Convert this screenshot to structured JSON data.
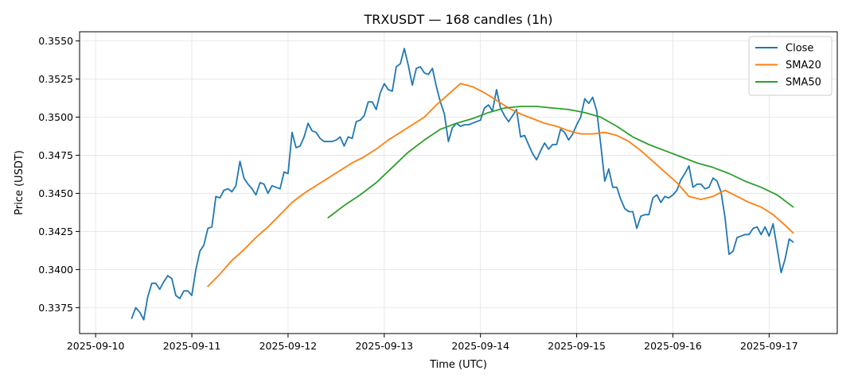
{
  "chart_data": {
    "type": "line",
    "title": "TRXUSDT — 168 candles (1h)",
    "xlabel": "Time (UTC)",
    "ylabel": "Price (USDT)",
    "x_ticks": [
      "2025-09-10",
      "2025-09-11",
      "2025-09-12",
      "2025-09-13",
      "2025-09-14",
      "2025-09-15",
      "2025-09-16",
      "2025-09-17"
    ],
    "y_ticks": [
      "0.3375",
      "0.3400",
      "0.3425",
      "0.3450",
      "0.3475",
      "0.3500",
      "0.3525",
      "0.3550"
    ],
    "xlim_days": [
      "2025-09-09 20:00",
      "2025-09-17 17:00"
    ],
    "ylim": [
      0.3358,
      0.3556
    ],
    "grid": true,
    "legend_position": "top-right",
    "series": [
      {
        "name": "Close",
        "color": "#1f77b4",
        "points": [
          [
            "2025-09-10 09:00",
            0.3368
          ],
          [
            "2025-09-10 10:00",
            0.3375
          ],
          [
            "2025-09-10 11:00",
            0.3372
          ],
          [
            "2025-09-10 12:00",
            0.3367
          ],
          [
            "2025-09-10 13:00",
            0.3382
          ],
          [
            "2025-09-10 14:00",
            0.3391
          ],
          [
            "2025-09-10 15:00",
            0.3391
          ],
          [
            "2025-09-10 16:00",
            0.3387
          ],
          [
            "2025-09-10 17:00",
            0.3392
          ],
          [
            "2025-09-10 18:00",
            0.3396
          ],
          [
            "2025-09-10 19:00",
            0.3394
          ],
          [
            "2025-09-10 20:00",
            0.3383
          ],
          [
            "2025-09-10 21:00",
            0.3381
          ],
          [
            "2025-09-10 22:00",
            0.3386
          ],
          [
            "2025-09-10 23:00",
            0.3386
          ],
          [
            "2025-09-11 00:00",
            0.3383
          ],
          [
            "2025-09-11 01:00",
            0.34
          ],
          [
            "2025-09-11 02:00",
            0.3412
          ],
          [
            "2025-09-11 03:00",
            0.3416
          ],
          [
            "2025-09-11 04:00",
            0.3427
          ],
          [
            "2025-09-11 05:00",
            0.3428
          ],
          [
            "2025-09-11 06:00",
            0.3448
          ],
          [
            "2025-09-11 07:00",
            0.3447
          ],
          [
            "2025-09-11 08:00",
            0.3452
          ],
          [
            "2025-09-11 09:00",
            0.3453
          ],
          [
            "2025-09-11 10:00",
            0.3451
          ],
          [
            "2025-09-11 11:00",
            0.3455
          ],
          [
            "2025-09-11 12:00",
            0.3471
          ],
          [
            "2025-09-11 13:00",
            0.346
          ],
          [
            "2025-09-11 14:00",
            0.3456
          ],
          [
            "2025-09-11 15:00",
            0.3453
          ],
          [
            "2025-09-11 16:00",
            0.3449
          ],
          [
            "2025-09-11 17:00",
            0.3457
          ],
          [
            "2025-09-11 18:00",
            0.3456
          ],
          [
            "2025-09-11 19:00",
            0.345
          ],
          [
            "2025-09-11 20:00",
            0.3455
          ],
          [
            "2025-09-11 21:00",
            0.3454
          ],
          [
            "2025-09-11 22:00",
            0.3453
          ],
          [
            "2025-09-11 23:00",
            0.3464
          ],
          [
            "2025-09-12 00:00",
            0.3463
          ],
          [
            "2025-09-12 01:00",
            0.349
          ],
          [
            "2025-09-12 02:00",
            0.348
          ],
          [
            "2025-09-12 03:00",
            0.3481
          ],
          [
            "2025-09-12 04:00",
            0.3487
          ],
          [
            "2025-09-12 05:00",
            0.3496
          ],
          [
            "2025-09-12 06:00",
            0.3491
          ],
          [
            "2025-09-12 07:00",
            0.349
          ],
          [
            "2025-09-12 08:00",
            0.3486
          ],
          [
            "2025-09-12 09:00",
            0.3484
          ],
          [
            "2025-09-12 10:00",
            0.3484
          ],
          [
            "2025-09-12 11:00",
            0.3484
          ],
          [
            "2025-09-12 12:00",
            0.3485
          ],
          [
            "2025-09-12 13:00",
            0.3487
          ],
          [
            "2025-09-12 14:00",
            0.3481
          ],
          [
            "2025-09-12 15:00",
            0.3487
          ],
          [
            "2025-09-12 16:00",
            0.3486
          ],
          [
            "2025-09-12 17:00",
            0.3497
          ],
          [
            "2025-09-12 18:00",
            0.3498
          ],
          [
            "2025-09-12 19:00",
            0.3501
          ],
          [
            "2025-09-12 20:00",
            0.351
          ],
          [
            "2025-09-12 21:00",
            0.351
          ],
          [
            "2025-09-12 22:00",
            0.3505
          ],
          [
            "2025-09-12 23:00",
            0.3516
          ],
          [
            "2025-09-13 00:00",
            0.3522
          ],
          [
            "2025-09-13 01:00",
            0.3518
          ],
          [
            "2025-09-13 02:00",
            0.3517
          ],
          [
            "2025-09-13 03:00",
            0.3533
          ],
          [
            "2025-09-13 04:00",
            0.3535
          ],
          [
            "2025-09-13 05:00",
            0.3545
          ],
          [
            "2025-09-13 06:00",
            0.3534
          ],
          [
            "2025-09-13 07:00",
            0.3521
          ],
          [
            "2025-09-13 08:00",
            0.3532
          ],
          [
            "2025-09-13 09:00",
            0.3533
          ],
          [
            "2025-09-13 10:00",
            0.3529
          ],
          [
            "2025-09-13 11:00",
            0.3528
          ],
          [
            "2025-09-13 12:00",
            0.3532
          ],
          [
            "2025-09-13 13:00",
            0.352
          ],
          [
            "2025-09-13 14:00",
            0.351
          ],
          [
            "2025-09-13 15:00",
            0.3502
          ],
          [
            "2025-09-13 16:00",
            0.3484
          ],
          [
            "2025-09-13 17:00",
            0.3493
          ],
          [
            "2025-09-13 18:00",
            0.3496
          ],
          [
            "2025-09-13 19:00",
            0.3494
          ],
          [
            "2025-09-13 20:00",
            0.3495
          ],
          [
            "2025-09-13 21:00",
            0.3495
          ],
          [
            "2025-09-13 22:00",
            0.3496
          ],
          [
            "2025-09-13 23:00",
            0.3497
          ],
          [
            "2025-09-14 00:00",
            0.3498
          ],
          [
            "2025-09-14 01:00",
            0.3506
          ],
          [
            "2025-09-14 02:00",
            0.3508
          ],
          [
            "2025-09-14 03:00",
            0.3504
          ],
          [
            "2025-09-14 04:00",
            0.3518
          ],
          [
            "2025-09-14 05:00",
            0.3506
          ],
          [
            "2025-09-14 06:00",
            0.3501
          ],
          [
            "2025-09-14 07:00",
            0.3497
          ],
          [
            "2025-09-14 08:00",
            0.3501
          ],
          [
            "2025-09-14 09:00",
            0.3505
          ],
          [
            "2025-09-14 10:00",
            0.3487
          ],
          [
            "2025-09-14 11:00",
            0.3488
          ],
          [
            "2025-09-14 12:00",
            0.3482
          ],
          [
            "2025-09-14 13:00",
            0.3476
          ],
          [
            "2025-09-14 14:00",
            0.3472
          ],
          [
            "2025-09-14 15:00",
            0.3478
          ],
          [
            "2025-09-14 16:00",
            0.3483
          ],
          [
            "2025-09-14 17:00",
            0.3479
          ],
          [
            "2025-09-14 18:00",
            0.3482
          ],
          [
            "2025-09-14 19:00",
            0.3482
          ],
          [
            "2025-09-14 20:00",
            0.3492
          ],
          [
            "2025-09-14 21:00",
            0.349
          ],
          [
            "2025-09-14 22:00",
            0.3485
          ],
          [
            "2025-09-14 23:00",
            0.3489
          ],
          [
            "2025-09-15 00:00",
            0.3495
          ],
          [
            "2025-09-15 01:00",
            0.35
          ],
          [
            "2025-09-15 02:00",
            0.3512
          ],
          [
            "2025-09-15 03:00",
            0.3509
          ],
          [
            "2025-09-15 04:00",
            0.3513
          ],
          [
            "2025-09-15 05:00",
            0.3504
          ],
          [
            "2025-09-15 06:00",
            0.3482
          ],
          [
            "2025-09-15 07:00",
            0.3458
          ],
          [
            "2025-09-15 08:00",
            0.3466
          ],
          [
            "2025-09-15 09:00",
            0.3454
          ],
          [
            "2025-09-15 10:00",
            0.3454
          ],
          [
            "2025-09-15 11:00",
            0.3446
          ],
          [
            "2025-09-15 12:00",
            0.344
          ],
          [
            "2025-09-15 13:00",
            0.3438
          ],
          [
            "2025-09-15 14:00",
            0.3438
          ],
          [
            "2025-09-15 15:00",
            0.3427
          ],
          [
            "2025-09-15 16:00",
            0.3435
          ],
          [
            "2025-09-15 17:00",
            0.3436
          ],
          [
            "2025-09-15 18:00",
            0.3436
          ],
          [
            "2025-09-15 19:00",
            0.3447
          ],
          [
            "2025-09-15 20:00",
            0.3449
          ],
          [
            "2025-09-15 21:00",
            0.3444
          ],
          [
            "2025-09-15 22:00",
            0.3448
          ],
          [
            "2025-09-15 23:00",
            0.3447
          ],
          [
            "2025-09-16 00:00",
            0.3449
          ],
          [
            "2025-09-16 01:00",
            0.3452
          ],
          [
            "2025-09-16 02:00",
            0.3459
          ],
          [
            "2025-09-16 03:00",
            0.3463
          ],
          [
            "2025-09-16 04:00",
            0.3468
          ],
          [
            "2025-09-16 05:00",
            0.3454
          ],
          [
            "2025-09-16 06:00",
            0.3456
          ],
          [
            "2025-09-16 07:00",
            0.3456
          ],
          [
            "2025-09-16 08:00",
            0.3453
          ],
          [
            "2025-09-16 09:00",
            0.3454
          ],
          [
            "2025-09-16 10:00",
            0.346
          ],
          [
            "2025-09-16 11:00",
            0.3458
          ],
          [
            "2025-09-16 12:00",
            0.3451
          ],
          [
            "2025-09-16 13:00",
            0.3434
          ],
          [
            "2025-09-16 14:00",
            0.341
          ],
          [
            "2025-09-16 15:00",
            0.3412
          ],
          [
            "2025-09-16 16:00",
            0.3421
          ],
          [
            "2025-09-16 17:00",
            0.3422
          ],
          [
            "2025-09-16 18:00",
            0.3423
          ],
          [
            "2025-09-16 19:00",
            0.3423
          ],
          [
            "2025-09-16 20:00",
            0.3427
          ],
          [
            "2025-09-16 21:00",
            0.3428
          ],
          [
            "2025-09-16 22:00",
            0.3423
          ],
          [
            "2025-09-16 23:00",
            0.3428
          ],
          [
            "2025-09-17 00:00",
            0.3422
          ],
          [
            "2025-09-17 01:00",
            0.343
          ],
          [
            "2025-09-17 02:00",
            0.3414
          ],
          [
            "2025-09-17 03:00",
            0.3398
          ],
          [
            "2025-09-17 04:00",
            0.3407
          ],
          [
            "2025-09-17 05:00",
            0.342
          ],
          [
            "2025-09-17 06:00",
            0.3418
          ]
        ]
      },
      {
        "name": "SMA20",
        "color": "#ff7f0e",
        "points": [
          [
            "2025-09-11 04:00",
            0.3389
          ],
          [
            "2025-09-11 07:00",
            0.3397
          ],
          [
            "2025-09-11 10:00",
            0.3406
          ],
          [
            "2025-09-11 13:00",
            0.3413
          ],
          [
            "2025-09-11 16:00",
            0.3421
          ],
          [
            "2025-09-11 19:00",
            0.3428
          ],
          [
            "2025-09-11 22:00",
            0.3436
          ],
          [
            "2025-09-12 01:00",
            0.3444
          ],
          [
            "2025-09-12 04:00",
            0.345
          ],
          [
            "2025-09-12 07:00",
            0.3455
          ],
          [
            "2025-09-12 10:00",
            0.346
          ],
          [
            "2025-09-12 13:00",
            0.3465
          ],
          [
            "2025-09-12 16:00",
            0.347
          ],
          [
            "2025-09-12 19:00",
            0.3474
          ],
          [
            "2025-09-12 22:00",
            0.3479
          ],
          [
            "2025-09-13 01:00",
            0.3485
          ],
          [
            "2025-09-13 04:00",
            0.349
          ],
          [
            "2025-09-13 07:00",
            0.3495
          ],
          [
            "2025-09-13 10:00",
            0.35
          ],
          [
            "2025-09-13 13:00",
            0.3508
          ],
          [
            "2025-09-13 16:00",
            0.3515
          ],
          [
            "2025-09-13 19:00",
            0.3522
          ],
          [
            "2025-09-13 22:00",
            0.352
          ],
          [
            "2025-09-14 01:00",
            0.3516
          ],
          [
            "2025-09-14 04:00",
            0.3511
          ],
          [
            "2025-09-14 07:00",
            0.3506
          ],
          [
            "2025-09-14 10:00",
            0.3502
          ],
          [
            "2025-09-14 13:00",
            0.3499
          ],
          [
            "2025-09-14 16:00",
            0.3496
          ],
          [
            "2025-09-14 19:00",
            0.3494
          ],
          [
            "2025-09-14 22:00",
            0.3491
          ],
          [
            "2025-09-15 01:00",
            0.3489
          ],
          [
            "2025-09-15 04:00",
            0.3489
          ],
          [
            "2025-09-15 07:00",
            0.349
          ],
          [
            "2025-09-15 10:00",
            0.3488
          ],
          [
            "2025-09-15 13:00",
            0.3484
          ],
          [
            "2025-09-15 16:00",
            0.3478
          ],
          [
            "2025-09-15 19:00",
            0.3471
          ],
          [
            "2025-09-15 22:00",
            0.3464
          ],
          [
            "2025-09-16 01:00",
            0.3457
          ],
          [
            "2025-09-16 04:00",
            0.3448
          ],
          [
            "2025-09-16 07:00",
            0.3446
          ],
          [
            "2025-09-16 10:00",
            0.3448
          ],
          [
            "2025-09-16 13:00",
            0.3452
          ],
          [
            "2025-09-16 16:00",
            0.3448
          ],
          [
            "2025-09-16 19:00",
            0.3444
          ],
          [
            "2025-09-16 22:00",
            0.3441
          ],
          [
            "2025-09-17 01:00",
            0.3436
          ],
          [
            "2025-09-17 04:00",
            0.3429
          ],
          [
            "2025-09-17 06:00",
            0.3424
          ]
        ]
      },
      {
        "name": "SMA50",
        "color": "#2ca02c",
        "points": [
          [
            "2025-09-12 10:00",
            0.3434
          ],
          [
            "2025-09-12 14:00",
            0.3442
          ],
          [
            "2025-09-12 18:00",
            0.3449
          ],
          [
            "2025-09-12 22:00",
            0.3457
          ],
          [
            "2025-09-13 02:00",
            0.3467
          ],
          [
            "2025-09-13 06:00",
            0.3477
          ],
          [
            "2025-09-13 10:00",
            0.3485
          ],
          [
            "2025-09-13 14:00",
            0.3492
          ],
          [
            "2025-09-13 18:00",
            0.3496
          ],
          [
            "2025-09-13 22:00",
            0.3499
          ],
          [
            "2025-09-14 02:00",
            0.3503
          ],
          [
            "2025-09-14 06:00",
            0.3506
          ],
          [
            "2025-09-14 10:00",
            0.3507
          ],
          [
            "2025-09-14 14:00",
            0.3507
          ],
          [
            "2025-09-14 18:00",
            0.3506
          ],
          [
            "2025-09-14 22:00",
            0.3505
          ],
          [
            "2025-09-15 02:00",
            0.3503
          ],
          [
            "2025-09-15 06:00",
            0.35
          ],
          [
            "2025-09-15 10:00",
            0.3494
          ],
          [
            "2025-09-15 14:00",
            0.3487
          ],
          [
            "2025-09-15 18:00",
            0.3482
          ],
          [
            "2025-09-15 22:00",
            0.3478
          ],
          [
            "2025-09-16 02:00",
            0.3474
          ],
          [
            "2025-09-16 06:00",
            0.347
          ],
          [
            "2025-09-16 10:00",
            0.3467
          ],
          [
            "2025-09-16 14:00",
            0.3463
          ],
          [
            "2025-09-16 18:00",
            0.3458
          ],
          [
            "2025-09-16 22:00",
            0.3454
          ],
          [
            "2025-09-17 02:00",
            0.3449
          ],
          [
            "2025-09-17 06:00",
            0.3441
          ]
        ]
      }
    ]
  }
}
